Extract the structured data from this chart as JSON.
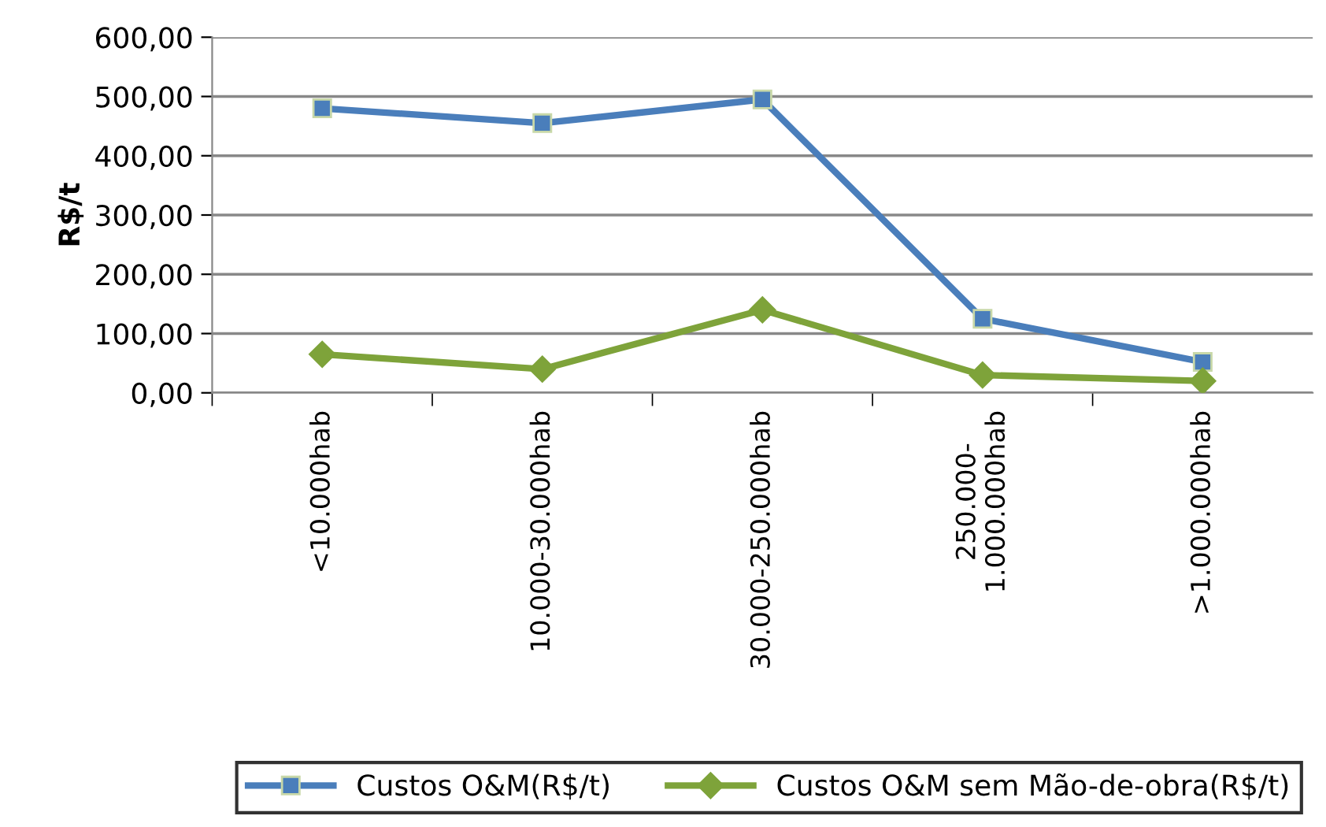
{
  "chart_data": {
    "type": "line",
    "ylabel": "R$/t",
    "categories": [
      "<10.000hab",
      "10.000-30.000hab",
      "30.000-250.000hab",
      "250.000-\n1.000.000hab",
      ">1.000.000hab"
    ],
    "series": [
      {
        "name": "Custos O&M(R$/t)",
        "color": "#4a7ebb",
        "marker": "square",
        "values": [
          480,
          455,
          495,
          125,
          52
        ]
      },
      {
        "name": "Custos O&M sem Mão-de-obra(R$/t)",
        "color": "#7ea33a",
        "marker": "diamond",
        "values": [
          65,
          40,
          140,
          30,
          20
        ]
      }
    ],
    "ylim": [
      0,
      600
    ],
    "yticks": [
      {
        "value": 0,
        "label": "0,00"
      },
      {
        "value": 100,
        "label": "100,00"
      },
      {
        "value": 200,
        "label": "200,00"
      },
      {
        "value": 300,
        "label": "300,00"
      },
      {
        "value": 400,
        "label": "400,00"
      },
      {
        "value": 500,
        "label": "500,00"
      },
      {
        "value": 600,
        "label": "600,00"
      }
    ],
    "grid": "y",
    "legend": "bottom",
    "line_style": "solid"
  }
}
